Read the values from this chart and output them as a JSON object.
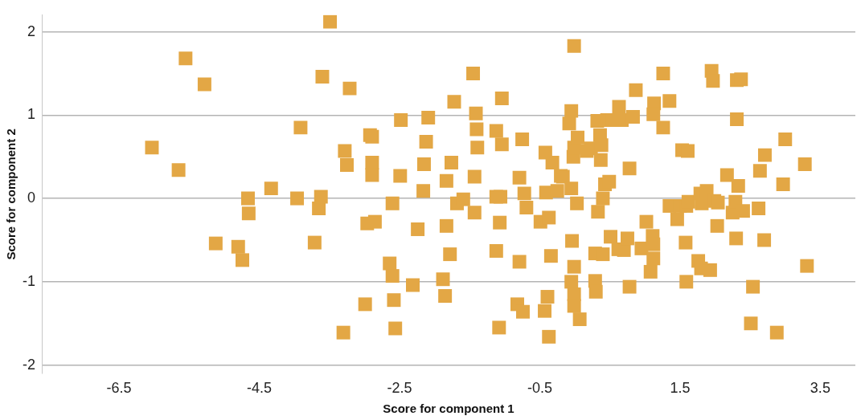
{
  "chart_data": {
    "type": "scatter",
    "xlabel": "Score for component 1",
    "ylabel": "Score for component 2",
    "color": "#e3a745",
    "marker": "square",
    "grid": "y",
    "legend": false,
    "xlim": [
      -7.6,
      4.0
    ],
    "ylim": [
      -2.1,
      2.2
    ],
    "xticks": [
      -6.5,
      -4.5,
      -2.5,
      -0.5,
      1.5,
      3.5
    ],
    "yticks": [
      -2,
      -1,
      0,
      1,
      2
    ],
    "x": [
      -6.03,
      -5.65,
      -5.55,
      -5.28,
      -5.12,
      -4.8,
      -4.74,
      -4.66,
      -4.65,
      -4.33,
      -3.96,
      -3.91,
      -3.71,
      -3.65,
      -3.62,
      -3.6,
      -3.49,
      -3.28,
      -3.25,
      -3.3,
      -3.21,
      -2.99,
      -2.96,
      -2.92,
      -2.89,
      -2.89,
      -2.89,
      -2.85,
      -2.64,
      -2.6,
      -2.6,
      -2.58,
      -2.56,
      -2.49,
      -2.48,
      -2.31,
      -2.24,
      -2.16,
      -2.15,
      -2.12,
      -2.09,
      -1.88,
      -1.85,
      -1.83,
      -1.83,
      -1.78,
      -1.76,
      -1.72,
      -1.68,
      -1.59,
      -1.45,
      -1.43,
      -1.41,
      -1.4,
      -1.39,
      -1.43,
      -1.12,
      -1.12,
      -1.12,
      -1.08,
      -1.06,
      -1.07,
      -1.04,
      -1.04,
      -0.79,
      -0.75,
      -0.79,
      -0.72,
      -0.69,
      -0.82,
      -0.74,
      -0.49,
      -0.42,
      -0.43,
      -0.39,
      -0.41,
      -0.37,
      -0.37,
      -0.34,
      -0.32,
      -0.25,
      -0.2,
      -0.17,
      -0.08,
      -0.05,
      -0.05,
      -0.04,
      -0.05,
      -0.02,
      -0.01,
      -0.01,
      -0.01,
      -0.01,
      -0.01,
      0.03,
      0.04,
      0.07,
      0.17,
      0.23,
      0.29,
      0.29,
      0.3,
      0.32,
      0.33,
      0.36,
      0.37,
      0.38,
      0.4,
      0.4,
      0.43,
      0.46,
      0.49,
      0.51,
      0.54,
      0.62,
      0.63,
      0.67,
      0.7,
      0.75,
      0.78,
      0.78,
      0.83,
      0.87,
      0.95,
      1.02,
      1.08,
      1.11,
      1.12,
      1.12,
      1.13,
      1.12,
      1.26,
      1.26,
      1.35,
      1.35,
      1.46,
      1.5,
      1.53,
      1.58,
      1.59,
      1.59,
      1.61,
      1.62,
      1.76,
      1.79,
      1.81,
      1.8,
      1.88,
      1.93,
      1.95,
      1.97,
      1.99,
      2.04,
      2.03,
      2.17,
      2.25,
      2.29,
      2.3,
      2.31,
      2.37,
      2.31,
      2.33,
      2.4,
      2.51,
      2.54,
      2.62,
      2.64,
      2.7,
      2.71,
      2.88,
      2.97,
      3.0,
      3.28,
      3.31
    ],
    "values": [
      0.61,
      0.34,
      1.68,
      1.37,
      -0.54,
      -0.58,
      -0.74,
      0.0,
      -0.18,
      0.12,
      0.0,
      0.85,
      -0.53,
      -0.12,
      0.02,
      1.46,
      2.12,
      0.57,
      0.4,
      -1.61,
      1.32,
      -1.27,
      -0.3,
      0.76,
      0.74,
      0.43,
      0.28,
      -0.28,
      -0.78,
      -0.93,
      -0.06,
      -1.22,
      -1.56,
      0.27,
      0.94,
      -1.04,
      -0.37,
      0.09,
      0.41,
      0.68,
      0.97,
      -0.97,
      -1.17,
      0.21,
      -0.33,
      -0.67,
      0.43,
      1.16,
      -0.06,
      -0.01,
      1.5,
      0.26,
      1.02,
      0.83,
      0.61,
      -0.17,
      0.02,
      0.81,
      -0.63,
      -1.55,
      0.02,
      -0.29,
      0.65,
      1.2,
      0.25,
      0.71,
      -0.76,
      0.06,
      -0.11,
      -1.27,
      -1.36,
      -0.28,
      0.55,
      -1.35,
      -1.18,
      0.07,
      -0.23,
      -1.66,
      -0.69,
      0.43,
      0.09,
      0.27,
      0.26,
      0.9,
      0.12,
      -1.0,
      -0.51,
      1.05,
      0.5,
      0.61,
      1.83,
      -0.82,
      -1.15,
      -1.29,
      -0.06,
      0.73,
      -1.45,
      0.57,
      0.6,
      -0.66,
      -0.99,
      -1.12,
      0.93,
      -0.16,
      0.76,
      0.46,
      0.64,
      0.0,
      -0.67,
      0.17,
      0.94,
      0.2,
      -0.46,
      0.94,
      -0.61,
      1.1,
      0.94,
      -0.62,
      -0.48,
      -1.06,
      0.36,
      0.98,
      1.3,
      -0.6,
      -0.28,
      -0.88,
      -0.45,
      -0.55,
      -0.72,
      1.14,
      1.01,
      1.5,
      0.85,
      1.17,
      -0.09,
      -0.25,
      -0.09,
      0.58,
      -0.53,
      -0.09,
      -1.0,
      0.57,
      -0.04,
      -0.75,
      0.06,
      -0.06,
      -0.84,
      0.09,
      -0.86,
      1.53,
      1.41,
      -0.03,
      -0.05,
      -0.33,
      0.28,
      -0.17,
      -0.04,
      -0.48,
      1.42,
      1.43,
      0.95,
      0.15,
      -0.15,
      -1.5,
      -1.06,
      -0.12,
      0.33,
      -0.5,
      0.52,
      -1.61,
      0.17,
      0.71,
      0.41,
      -0.81
    ]
  }
}
